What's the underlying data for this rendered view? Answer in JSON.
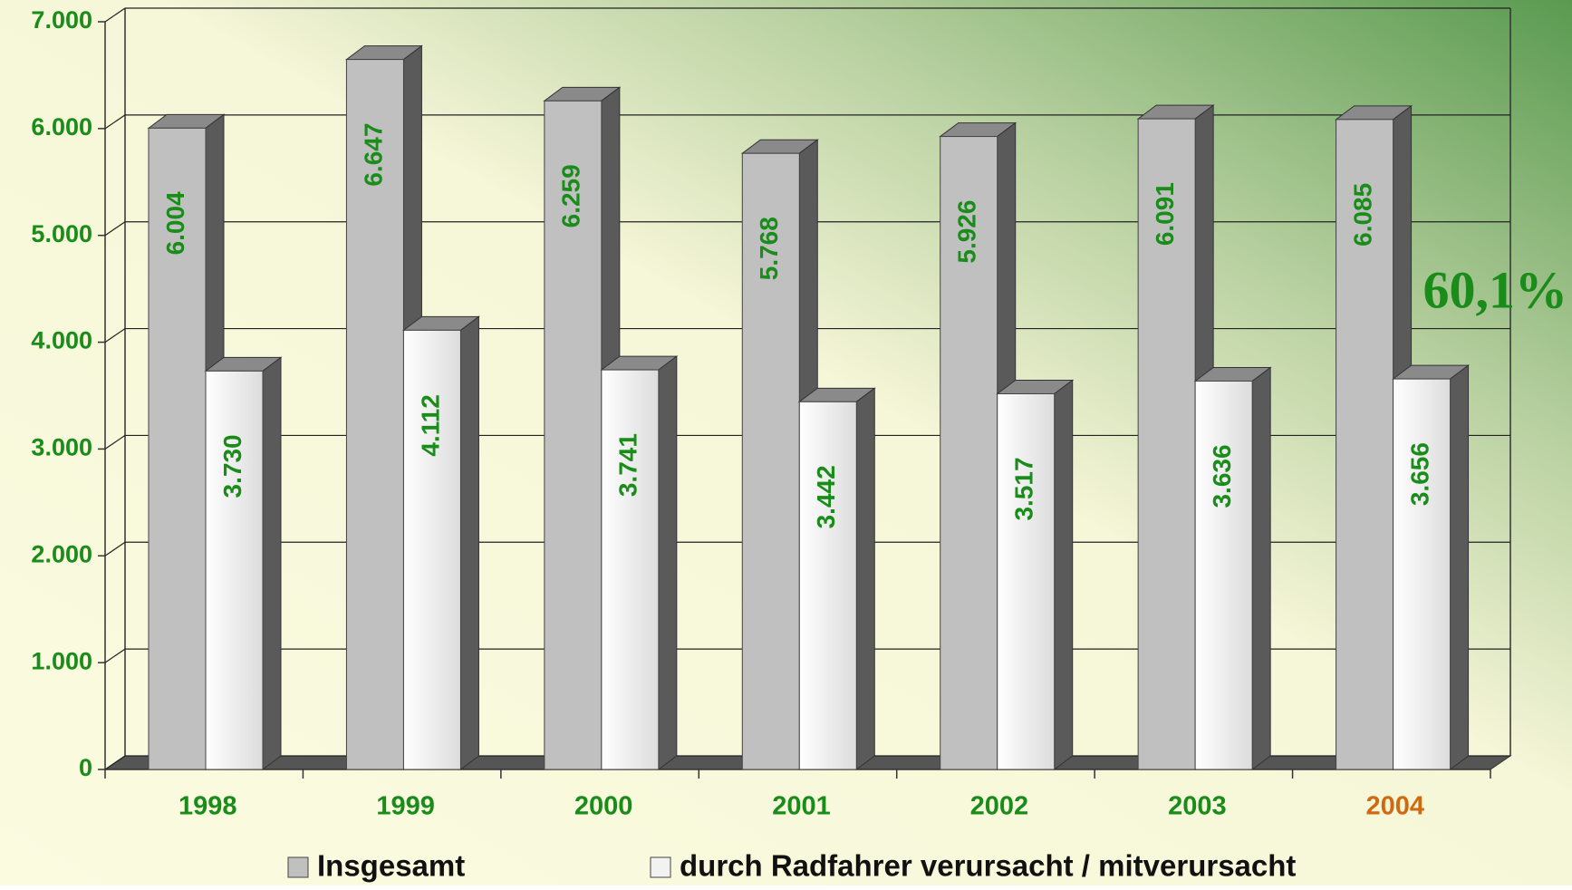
{
  "chart_data": {
    "type": "bar3d",
    "categories": [
      "1998",
      "1999",
      "2000",
      "2001",
      "2002",
      "2003",
      "2004"
    ],
    "category_colors": [
      "#1a8c1a",
      "#1a8c1a",
      "#1a8c1a",
      "#1a8c1a",
      "#1a8c1a",
      "#1a8c1a",
      "#d06a10"
    ],
    "series": [
      {
        "name": "Insgesamt",
        "color": "#c0c0c0",
        "values": [
          6004,
          6647,
          6259,
          5768,
          5926,
          6091,
          6085
        ],
        "value_labels": [
          "6.004",
          "6.647",
          "6.259",
          "5.768",
          "5.926",
          "6.091",
          "6.085"
        ]
      },
      {
        "name": "durch Radfahrer verursacht / mitverursacht",
        "color": "#f2f2f2",
        "values": [
          3730,
          4112,
          3741,
          3442,
          3517,
          3636,
          3656
        ],
        "value_labels": [
          "3.730",
          "4.112",
          "3.741",
          "3.442",
          "3.517",
          "3.636",
          "3.656"
        ]
      }
    ],
    "ylim": [
      0,
      7000
    ],
    "yticks": [
      0,
      {
        "value": 1000,
        "label": "1.000"
      },
      {
        "value": 2000,
        "label": "2.000"
      },
      {
        "value": 3000,
        "label": "3.000"
      },
      {
        "value": 4000,
        "label": "4.000"
      },
      {
        "value": 5000,
        "label": "5.000"
      },
      {
        "value": 6000,
        "label": "6.000"
      },
      {
        "value": 7000,
        "label": "7.000"
      }
    ],
    "grid": true,
    "annotation": "60,1%",
    "label_color": "#1a8c1a"
  }
}
